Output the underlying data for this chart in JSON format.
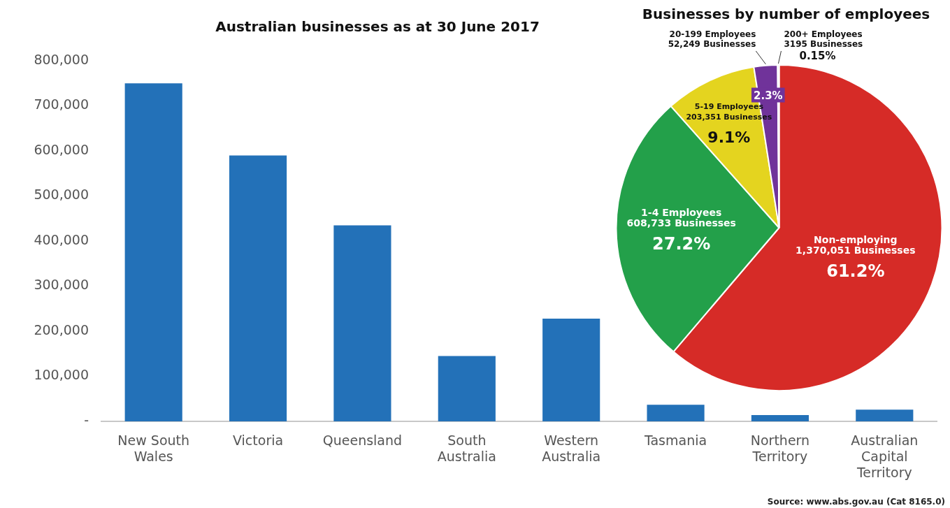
{
  "chart_data": [
    {
      "type": "bar",
      "title": "Australian businesses as at 30 June 2017",
      "categories": [
        "New South Wales",
        "Victoria",
        "Queensland",
        "South Australia",
        "Western Australia",
        "Tasmania",
        "Northern Territory",
        "Australian Capital Territory"
      ],
      "values": [
        750000,
        590000,
        435000,
        145000,
        228000,
        37000,
        14000,
        26000
      ],
      "color": "#2371b8",
      "ylim": [
        0,
        800000
      ],
      "yticks": [
        {
          "value": 0,
          "label": "-"
        },
        {
          "value": 100000,
          "label": "100,000"
        },
        {
          "value": 200000,
          "label": "200,000"
        },
        {
          "value": 300000,
          "label": "300,000"
        },
        {
          "value": 400000,
          "label": "400,000"
        },
        {
          "value": 500000,
          "label": "500,000"
        },
        {
          "value": 600000,
          "label": "600,000"
        },
        {
          "value": 700000,
          "label": "700,000"
        },
        {
          "value": 800000,
          "label": "800,000"
        }
      ],
      "grid": false,
      "legend": false,
      "annotations": [
        "Source: www.abs.gov.au (Cat 8165.0)"
      ]
    },
    {
      "type": "pie",
      "title": "Businesses by number of employees",
      "categories": [
        "Non-employing",
        "1-4 Employees",
        "5-19 Employees",
        "20-199 Employees",
        "200+ Employees"
      ],
      "values": [
        1370051,
        608733,
        203351,
        52249,
        3195
      ],
      "colors": [
        "#d62b27",
        "#23a04a",
        "#e4d41f",
        "#70339a",
        "#3a72c4"
      ],
      "value_labels": [
        "1,370,051 Businesses\n61.2%",
        "608,733 Businesses\n27.2%",
        "203,351 Businesses\n9.1%",
        "52,249 Businesses\n2.3%",
        "3195 Businesses\n0.15%"
      ],
      "legend": false
    }
  ]
}
